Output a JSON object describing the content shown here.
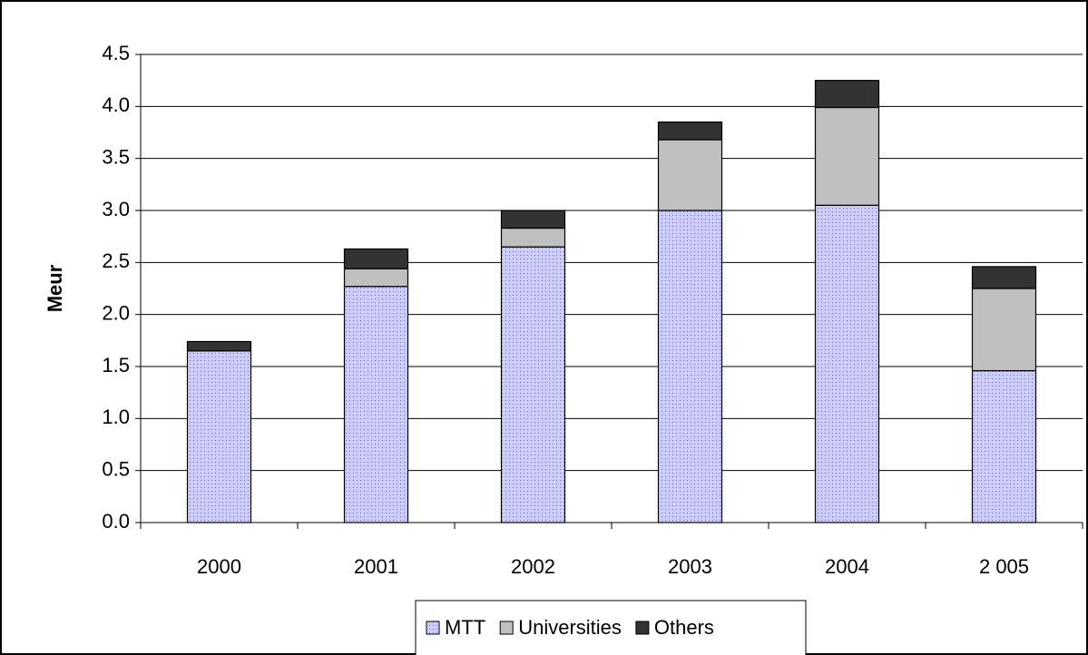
{
  "chart_data": {
    "type": "bar",
    "stacked": true,
    "y_label": "Meur",
    "categories": [
      "2000",
      "2001",
      "2002",
      "2003",
      "2004",
      "2 005"
    ],
    "series": [
      {
        "name": "MTT",
        "color": "#ccccff",
        "values": [
          1.65,
          2.27,
          2.65,
          3.0,
          3.05,
          1.46
        ]
      },
      {
        "name": "Universities",
        "color": "#c0c0c0",
        "values": [
          0,
          0.17,
          0.18,
          0.68,
          0.94,
          0.79
        ]
      },
      {
        "name": "Others",
        "color": "#333333",
        "values": [
          0.09,
          0.19,
          0.17,
          0.17,
          0.26,
          0.21
        ]
      }
    ],
    "ylim": [
      0,
      4.5
    ],
    "yticks": [
      {
        "value": 0,
        "label": "0.0"
      },
      0.5,
      {
        "value": 1,
        "label": "1.0"
      },
      1.5,
      {
        "value": 2,
        "label": "2.0"
      },
      2.5,
      {
        "value": 3,
        "label": "3.0"
      },
      3.5,
      {
        "value": 4,
        "label": "4.0"
      },
      4.5
    ],
    "grid": true,
    "legend": "bottom"
  }
}
